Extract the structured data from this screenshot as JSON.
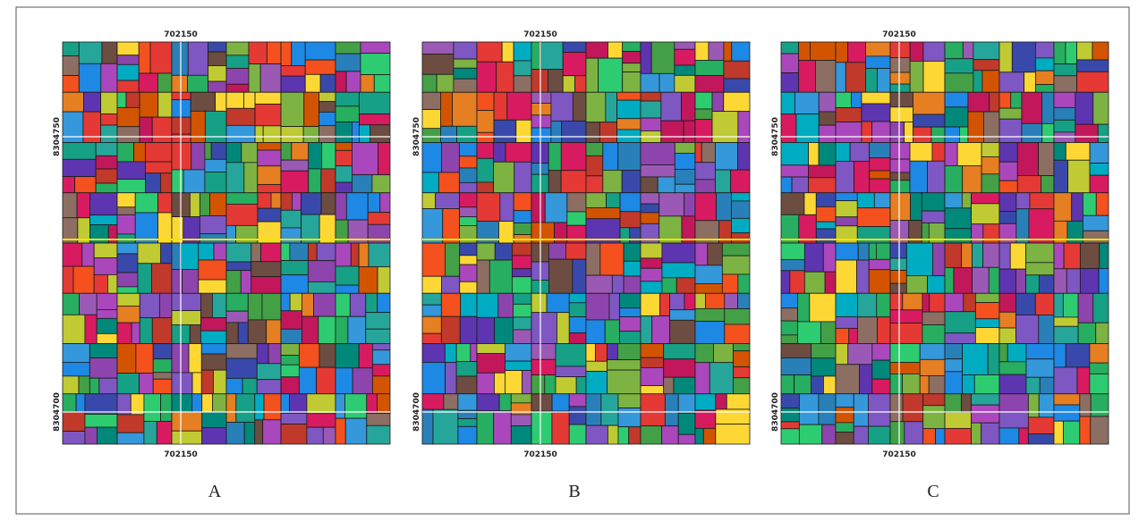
{
  "panels": [
    {
      "top_label": "702150",
      "bottom_label": "702150",
      "left_upper_label": "8304750",
      "left_lower_label": "8304700",
      "caption": "A"
    },
    {
      "top_label": "702150",
      "bottom_label": "702150",
      "left_upper_label": "8304750",
      "left_lower_label": "8304700",
      "caption": "B"
    },
    {
      "top_label": "702150",
      "bottom_label": "702150",
      "left_upper_label": "8304750",
      "left_lower_label": "8304700",
      "caption": "C"
    }
  ]
}
